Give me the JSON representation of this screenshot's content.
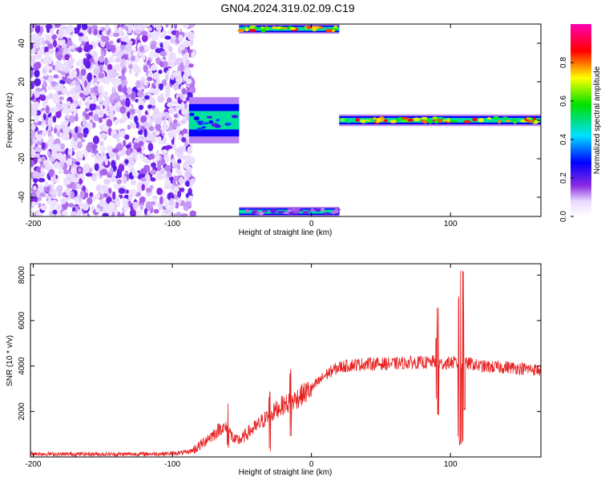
{
  "title": "GN04.2024.319.02.09.C19",
  "chart_data": [
    {
      "type": "heatmap",
      "name": "spectrogram",
      "xlabel": "Height of straight line (km)",
      "ylabel": "Frequency (Hz)",
      "xlim": [
        -202,
        165
      ],
      "ylim": [
        -50,
        50
      ],
      "xticks": [
        -200,
        -100,
        0,
        100
      ],
      "yticks": [
        -40,
        -20,
        0,
        20,
        40
      ],
      "colorbar": {
        "label": "Normalized spectral amplitude",
        "range": [
          0.0,
          1.0
        ],
        "ticks": [
          0.0,
          0.2,
          0.4,
          0.6,
          0.8
        ],
        "colormap": "rainbow (white-violet-blue-cyan-green-yellow-red-magenta)"
      },
      "regions": [
        {
          "x_range": [
            -202,
            -85
          ],
          "y_range": [
            -50,
            50
          ],
          "amplitude": 0.05,
          "description": "diffuse noise speckle"
        },
        {
          "x_range": [
            -88,
            -52
          ],
          "y_range": [
            -12,
            12
          ],
          "amplitude": 0.35,
          "description": "band near 0 Hz"
        },
        {
          "x_range": [
            -52,
            20
          ],
          "y_range": [
            45,
            50
          ],
          "amplitude": 0.9,
          "description": "band at top edge"
        },
        {
          "x_range": [
            -52,
            20
          ],
          "y_range": [
            -50,
            -45
          ],
          "amplitude": 0.2,
          "description": "band at bottom edge"
        },
        {
          "x_range": [
            20,
            165
          ],
          "y_range": [
            -3,
            3
          ],
          "amplitude": 0.9,
          "description": "strong band centered at 0 Hz"
        }
      ]
    },
    {
      "type": "line",
      "name": "snr",
      "xlabel": "Height of straight line (km)",
      "ylabel": "SNR (10 * v/v)",
      "xlim": [
        -202,
        165
      ],
      "ylim": [
        0,
        8500
      ],
      "xticks": [
        -200,
        -100,
        0,
        100
      ],
      "yticks": [
        2000,
        4000,
        6000,
        8000
      ],
      "color": "#e82020",
      "x": [
        -202,
        -180,
        -160,
        -140,
        -120,
        -100,
        -90,
        -85,
        -80,
        -75,
        -70,
        -65,
        -60,
        -55,
        -50,
        -45,
        -40,
        -35,
        -30,
        -25,
        -20,
        -15,
        -10,
        -5,
        0,
        5,
        10,
        15,
        20,
        25,
        30,
        40,
        50,
        60,
        70,
        80,
        85,
        88,
        90,
        92,
        95,
        100,
        104,
        106,
        108,
        110,
        115,
        120,
        130,
        140,
        150,
        160,
        165
      ],
      "values": [
        150,
        120,
        130,
        120,
        130,
        150,
        200,
        300,
        500,
        800,
        1000,
        1300,
        1200,
        700,
        800,
        1100,
        1300,
        1600,
        1800,
        2100,
        2300,
        2400,
        2600,
        2800,
        3000,
        3300,
        3600,
        3800,
        3950,
        4000,
        4050,
        4100,
        4100,
        4100,
        4150,
        4150,
        4150,
        4200,
        4200,
        4100,
        4100,
        4150,
        4150,
        4000,
        4000,
        4100,
        4100,
        4000,
        3950,
        3950,
        3900,
        3850,
        3800
      ],
      "spikes": [
        {
          "x": -60,
          "min": 400,
          "max": 2500
        },
        {
          "x": -30,
          "min": 200,
          "max": 2900
        },
        {
          "x": -15,
          "min": 800,
          "max": 3900
        },
        {
          "x": 90,
          "min": 2400,
          "max": 5400
        },
        {
          "x": 91,
          "min": 1800,
          "max": 6700
        },
        {
          "x": 106,
          "min": 800,
          "max": 7200
        },
        {
          "x": 107,
          "min": 500,
          "max": 8400
        },
        {
          "x": 109,
          "min": 600,
          "max": 8400
        },
        {
          "x": 110,
          "min": 2000,
          "max": 6000
        }
      ],
      "noise_amplitude": 250
    }
  ]
}
